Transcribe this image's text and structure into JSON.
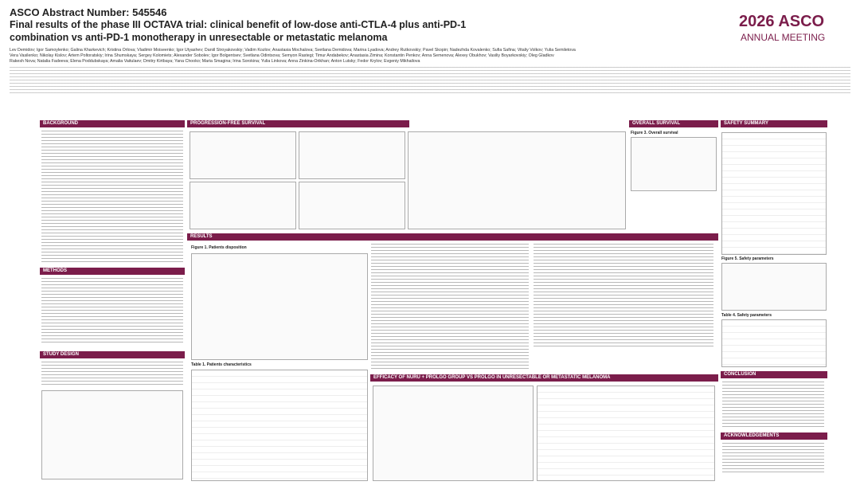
{
  "header": {
    "abstract": "ASCO Abstract Number: 545546",
    "title_lines": [
      "Final results of the phase III OCTAVA trial: clinical benefit of low-dose anti-CTLA-4 plus anti-PD-1",
      "combination vs anti-PD-1 monotherapy in unresectable or metastatic melanoma"
    ],
    "authors": [
      "Lev Demidov; Igor Samoylenko; Galina Kharkevich; Kristina Orlova; Vladimir Moiseenko; Igor Utyashev; Daniil Stroyakovskiy; Vadim Kozlov; Anastasia Mochalova; Svetlana Demidova; Marina Lyadova; Andrey Rutkovskiy; Pavel Skopin; Nadezhda Kovalenko; Sufia Safina; Vitaliy Volkov; Yulia Semiletova",
      "Vera Vasilenko; Nikolay Kislov; Artem Poltoratskiy; Irina Shumskaya; Sergey Kolomiets; Alexander Sobolev; Igor Bolgentsev; Svetlana Odintsova; Semyon Rastegi; Timur Andabekov; Anastasia Zimina; Konstantin Penkov; Anna Semenova; Alexey Obukhov; Vasiliy Boyarkovskiy; Oleg Gladkov",
      "Rakesh Nova; Natalia Fadeeva; Elena Poddubskaya; Amalia Vaitulaev; Dmitry Kirtbaya; Yana Chooko; Maria Smagina; Irina Sorokina; Yulia Linkova; Anna Zinkina-Orikhan; Anton Lutsky; Fedor Krylov; Evgeniy Mikhailova"
    ]
  },
  "logo": {
    "year": "2026",
    "brand": "ASCO",
    "subtitle": "ANNUAL MEETING"
  },
  "sections": {
    "background": "BACKGROUND",
    "methods": "METHODS",
    "study_design": "STUDY DESIGN",
    "pfs": "PROGRESSION-FREE SURVIVAL",
    "os": "OVERALL SURVIVAL",
    "safety": "SAFETY SUMMARY",
    "results": "RESULTS",
    "efficacy": "EFFICACY OF NURU + PROLGO GROUP VS PROLGO IN UNRESECTABLE OR METASTATIC MELANOMA",
    "conclusion": "CONCLUSION",
    "acknowledgements": "ACKNOWLEDGEMENTS"
  },
  "captions": {
    "fig1": "Figure 1. Patients disposition",
    "table1": "Table 1. Patients characteristics",
    "fig3": "Figure 3. Overall survival",
    "fig5": "Figure 5. Safety parameters",
    "table4": "Table 4. Safety parameters"
  }
}
